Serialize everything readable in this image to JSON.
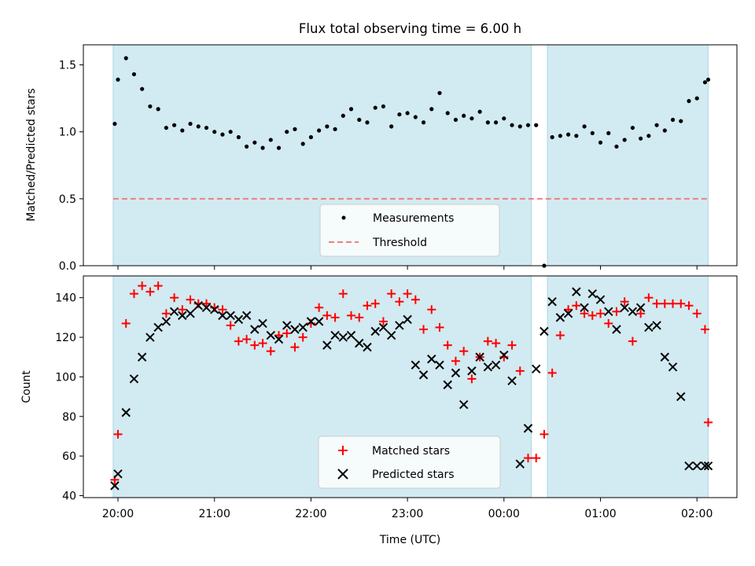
{
  "title": "Flux total observing time = 6.00 h",
  "colors": {
    "shade": "#add8e6",
    "measurement": "#000000",
    "threshold": "#f08080",
    "matched": "#ff0000",
    "predicted": "#000000"
  },
  "chart_data": [
    {
      "type": "scatter",
      "panel": "ratio",
      "ylabel": "Matched/Predicted stars",
      "ylim": [
        0.0,
        1.65
      ],
      "yticks": [
        "0.0",
        "0.5",
        "1.0",
        "1.5"
      ],
      "grid": false,
      "legend_placement": "lower-center",
      "observing_windows": [
        [
          "19:57",
          "00:17"
        ],
        [
          "00:27",
          "02:07"
        ]
      ],
      "threshold": {
        "name": "Threshold",
        "value": 0.5
      },
      "series": [
        {
          "name": "Measurements",
          "x": [
            "19:58",
            "20:00",
            "20:05",
            "20:10",
            "20:15",
            "20:20",
            "20:25",
            "20:30",
            "20:35",
            "20:40",
            "20:45",
            "20:50",
            "20:55",
            "21:00",
            "21:05",
            "21:10",
            "21:15",
            "21:20",
            "21:25",
            "21:30",
            "21:35",
            "21:40",
            "21:45",
            "21:50",
            "21:55",
            "22:00",
            "22:05",
            "22:10",
            "22:15",
            "22:20",
            "22:25",
            "22:30",
            "22:35",
            "22:40",
            "22:45",
            "22:50",
            "22:55",
            "23:00",
            "23:05",
            "23:10",
            "23:15",
            "23:20",
            "23:25",
            "23:30",
            "23:35",
            "23:40",
            "23:45",
            "23:50",
            "23:55",
            "00:00",
            "00:05",
            "00:10",
            "00:15",
            "00:20",
            "00:25",
            "00:30",
            "00:35",
            "00:40",
            "00:45",
            "00:50",
            "00:55",
            "01:00",
            "01:05",
            "01:10",
            "01:15",
            "01:20",
            "01:25",
            "01:30",
            "01:35",
            "01:40",
            "01:45",
            "01:50",
            "01:55",
            "02:00",
            "02:05",
            "02:07"
          ],
          "y": [
            1.06,
            1.39,
            1.55,
            1.43,
            1.32,
            1.19,
            1.17,
            1.03,
            1.05,
            1.01,
            1.06,
            1.04,
            1.03,
            1.0,
            0.98,
            1.0,
            0.96,
            0.89,
            0.92,
            0.88,
            0.94,
            0.88,
            1.0,
            1.02,
            0.91,
            0.96,
            1.01,
            1.04,
            1.02,
            1.12,
            1.17,
            1.09,
            1.07,
            1.18,
            1.19,
            1.04,
            1.13,
            1.14,
            1.11,
            1.07,
            1.17,
            1.29,
            1.14,
            1.09,
            1.12,
            1.1,
            1.15,
            1.07,
            1.07,
            1.1,
            1.05,
            1.04,
            1.05,
            1.05,
            0.0,
            0.96,
            0.97,
            0.98,
            0.97,
            1.04,
            0.99,
            0.92,
            0.99,
            0.89,
            0.94,
            1.03,
            0.95,
            0.97,
            1.05,
            1.01,
            1.09,
            1.08,
            1.23,
            1.25,
            1.37,
            1.39
          ]
        }
      ]
    },
    {
      "type": "scatter",
      "panel": "count",
      "xlabel": "Time (UTC)",
      "ylabel": "Count",
      "ylim": [
        39,
        151
      ],
      "yticks": [
        "40",
        "60",
        "80",
        "100",
        "120",
        "140"
      ],
      "xticks": [
        "20:00",
        "21:00",
        "22:00",
        "23:00",
        "00:00",
        "01:00",
        "02:00"
      ],
      "grid": false,
      "legend_placement": "lower-center",
      "observing_windows": [
        [
          "19:57",
          "00:17"
        ],
        [
          "00:27",
          "02:07"
        ]
      ],
      "series": [
        {
          "name": "Matched stars",
          "x": [
            "19:58",
            "20:00",
            "20:05",
            "20:10",
            "20:15",
            "20:20",
            "20:25",
            "20:30",
            "20:35",
            "20:40",
            "20:45",
            "20:50",
            "20:55",
            "21:00",
            "21:05",
            "21:10",
            "21:15",
            "21:20",
            "21:25",
            "21:30",
            "21:35",
            "21:40",
            "21:45",
            "21:50",
            "21:55",
            "22:00",
            "22:05",
            "22:10",
            "22:15",
            "22:20",
            "22:25",
            "22:30",
            "22:35",
            "22:40",
            "22:45",
            "22:50",
            "22:55",
            "23:00",
            "23:05",
            "23:10",
            "23:15",
            "23:20",
            "23:25",
            "23:30",
            "23:35",
            "23:40",
            "23:45",
            "23:50",
            "23:55",
            "00:00",
            "00:05",
            "00:10",
            "00:15",
            "00:20",
            "00:25",
            "00:30",
            "00:35",
            "00:40",
            "00:45",
            "00:50",
            "00:55",
            "01:00",
            "01:05",
            "01:10",
            "01:15",
            "01:20",
            "01:25",
            "01:30",
            "01:35",
            "01:40",
            "01:45",
            "01:50",
            "01:55",
            "02:00",
            "02:05",
            "02:07"
          ],
          "y": [
            48,
            71,
            127,
            142,
            146,
            143,
            146,
            132,
            140,
            134,
            139,
            137,
            137,
            135,
            134,
            126,
            118,
            119,
            116,
            117,
            113,
            121,
            122,
            115,
            120,
            127,
            135,
            131,
            130,
            142,
            131,
            130,
            136,
            137,
            128,
            142,
            138,
            142,
            139,
            124,
            134,
            125,
            116,
            108,
            113,
            99,
            110,
            118,
            117,
            110,
            116,
            103,
            59,
            59,
            71,
            102,
            121,
            134,
            136,
            132,
            131,
            132,
            127,
            133,
            138,
            118,
            132,
            140,
            137,
            137,
            137,
            137,
            136,
            132,
            124,
            77
          ]
        },
        {
          "name": "Predicted stars",
          "x": [
            "19:58",
            "20:00",
            "20:05",
            "20:10",
            "20:15",
            "20:20",
            "20:25",
            "20:30",
            "20:35",
            "20:40",
            "20:45",
            "20:50",
            "20:55",
            "21:00",
            "21:05",
            "21:10",
            "21:15",
            "21:20",
            "21:25",
            "21:30",
            "21:35",
            "21:40",
            "21:45",
            "21:50",
            "21:55",
            "22:00",
            "22:05",
            "22:10",
            "22:15",
            "22:20",
            "22:25",
            "22:30",
            "22:35",
            "22:40",
            "22:45",
            "22:50",
            "22:55",
            "23:00",
            "23:05",
            "23:10",
            "23:15",
            "23:20",
            "23:25",
            "23:30",
            "23:35",
            "23:40",
            "23:45",
            "23:50",
            "23:55",
            "00:00",
            "00:05",
            "00:10",
            "00:15",
            "00:20",
            "00:25",
            "00:30",
            "00:35",
            "00:40",
            "00:45",
            "00:50",
            "00:55",
            "01:00",
            "01:05",
            "01:10",
            "01:15",
            "01:20",
            "01:25",
            "01:30",
            "01:35",
            "01:40",
            "01:45",
            "01:50",
            "01:55",
            "02:00",
            "02:05",
            "02:07"
          ],
          "y": [
            45,
            51,
            82,
            99,
            110,
            120,
            125,
            128,
            133,
            131,
            132,
            136,
            135,
            134,
            131,
            131,
            129,
            131,
            124,
            127,
            121,
            119,
            126,
            124,
            125,
            128,
            128,
            116,
            121,
            120,
            121,
            117,
            115,
            123,
            125,
            121,
            126,
            129,
            106,
            101,
            109,
            106,
            96,
            102,
            86,
            103,
            110,
            105,
            106,
            111,
            98,
            56,
            74,
            104,
            123,
            138,
            130,
            132,
            143,
            135,
            142,
            139,
            133,
            124,
            135,
            133,
            135,
            125,
            126,
            110,
            105,
            90,
            55,
            55,
            55,
            55
          ]
        }
      ]
    }
  ]
}
